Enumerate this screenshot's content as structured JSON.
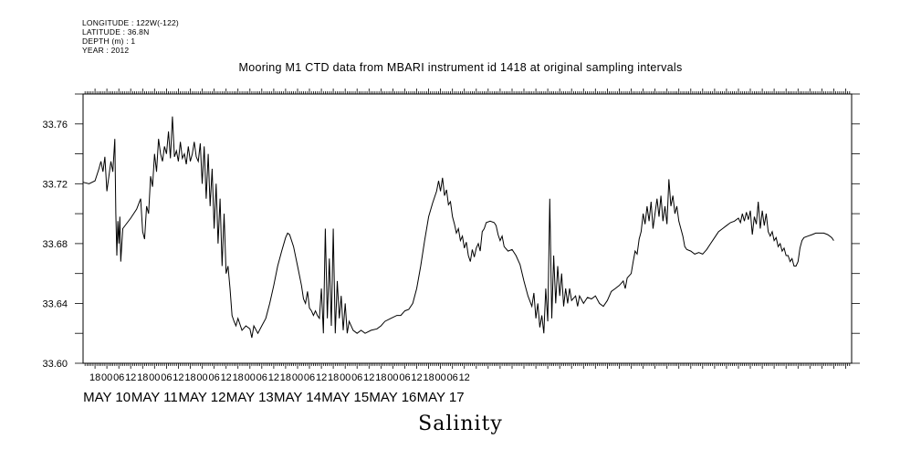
{
  "header": {
    "longitude": "LONGITUDE : 122W(-122)",
    "latitude": "LATITUDE : 36.8N",
    "depth": "DEPTH (m) : 1",
    "year": "YEAR : 2012"
  },
  "chart_data": {
    "type": "line",
    "title": "Mooring M1 CTD data from MBARI instrument id 1418 at original sampling intervals",
    "xlabel": "Salinity",
    "ylabel": "",
    "ylim": [
      33.6,
      33.78
    ],
    "yticks": [
      "33.60",
      "33.64",
      "33.68",
      "33.72",
      "33.76"
    ],
    "xlim_hours_label": "May 9 12:00 to May 17 15:00",
    "hour_ticks": [
      "18",
      "00",
      "06",
      "12",
      "18",
      "00",
      "06",
      "12",
      "18",
      "00",
      "06",
      "12",
      "18",
      "00",
      "06",
      "12",
      "18",
      "00",
      "06",
      "12",
      "18",
      "00",
      "06",
      "12",
      "18",
      "00",
      "06",
      "12",
      "18",
      "00",
      "06",
      "12"
    ],
    "day_labels": [
      "MAY 10",
      "MAY 11",
      "MAY 12",
      "MAY 13",
      "MAY 14",
      "MAY 15",
      "MAY 16",
      "MAY 17"
    ],
    "color": "#000000",
    "series": [
      {
        "points": [
          [
            0,
            33.721
          ],
          [
            3,
            33.72
          ],
          [
            6,
            33.722
          ],
          [
            8,
            33.73
          ],
          [
            9,
            33.735
          ],
          [
            10,
            33.728
          ],
          [
            11,
            33.738
          ],
          [
            12,
            33.715
          ],
          [
            13,
            33.725
          ],
          [
            14,
            33.735
          ],
          [
            15,
            33.728
          ],
          [
            16,
            33.75
          ],
          [
            16.5,
            33.7
          ],
          [
            17,
            33.672
          ],
          [
            17.5,
            33.695
          ],
          [
            18,
            33.68
          ],
          [
            18.5,
            33.698
          ],
          [
            19,
            33.668
          ],
          [
            20,
            33.69
          ],
          [
            24,
            33.697
          ],
          [
            27,
            33.703
          ],
          [
            29,
            33.71
          ],
          [
            30,
            33.688
          ],
          [
            31,
            33.683
          ],
          [
            32,
            33.705
          ],
          [
            33,
            33.7
          ],
          [
            34,
            33.725
          ],
          [
            35,
            33.718
          ],
          [
            36,
            33.74
          ],
          [
            37,
            33.728
          ],
          [
            38,
            33.75
          ],
          [
            39,
            33.74
          ],
          [
            40,
            33.735
          ],
          [
            41,
            33.745
          ],
          [
            42,
            33.74
          ],
          [
            43,
            33.755
          ],
          [
            44,
            33.737
          ],
          [
            45,
            33.765
          ],
          [
            46,
            33.738
          ],
          [
            47,
            33.742
          ],
          [
            48,
            33.735
          ],
          [
            49,
            33.748
          ],
          [
            50,
            33.737
          ],
          [
            51,
            33.74
          ],
          [
            52,
            33.733
          ],
          [
            53,
            33.745
          ],
          [
            54,
            33.735
          ],
          [
            55,
            33.74
          ],
          [
            56,
            33.748
          ],
          [
            57,
            33.738
          ],
          [
            58,
            33.735
          ],
          [
            59,
            33.747
          ],
          [
            60,
            33.72
          ],
          [
            61,
            33.745
          ],
          [
            62,
            33.71
          ],
          [
            63,
            33.74
          ],
          [
            64,
            33.705
          ],
          [
            65,
            33.73
          ],
          [
            66,
            33.69
          ],
          [
            67,
            33.72
          ],
          [
            68,
            33.68
          ],
          [
            69,
            33.71
          ],
          [
            70,
            33.665
          ],
          [
            71,
            33.7
          ],
          [
            72,
            33.66
          ],
          [
            73,
            33.665
          ],
          [
            74,
            33.65
          ],
          [
            75,
            33.632
          ],
          [
            76,
            33.628
          ],
          [
            77,
            33.625
          ],
          [
            78,
            33.63
          ],
          [
            80,
            33.622
          ],
          [
            82,
            33.625
          ],
          [
            84,
            33.623
          ],
          [
            85,
            33.617
          ],
          [
            86,
            33.625
          ],
          [
            88,
            33.62
          ],
          [
            90,
            33.625
          ],
          [
            92,
            33.63
          ],
          [
            94,
            33.64
          ],
          [
            96,
            33.652
          ],
          [
            98,
            33.665
          ],
          [
            100,
            33.675
          ],
          [
            102,
            33.684
          ],
          [
            103,
            33.687
          ],
          [
            104,
            33.686
          ],
          [
            106,
            33.678
          ],
          [
            108,
            33.665
          ],
          [
            110,
            33.652
          ],
          [
            111,
            33.643
          ],
          [
            112,
            33.64
          ],
          [
            113,
            33.648
          ],
          [
            114,
            33.637
          ],
          [
            115,
            33.635
          ],
          [
            116,
            33.632
          ],
          [
            117,
            33.635
          ],
          [
            118,
            33.632
          ],
          [
            119,
            33.63
          ],
          [
            120,
            33.65
          ],
          [
            121,
            33.62
          ],
          [
            122,
            33.69
          ],
          [
            123,
            33.63
          ],
          [
            124,
            33.67
          ],
          [
            125,
            33.625
          ],
          [
            126,
            33.69
          ],
          [
            127,
            33.62
          ],
          [
            128,
            33.655
          ],
          [
            129,
            33.63
          ],
          [
            130,
            33.645
          ],
          [
            131,
            33.622
          ],
          [
            132,
            33.64
          ],
          [
            133,
            33.62
          ],
          [
            134,
            33.628
          ],
          [
            136,
            33.622
          ],
          [
            138,
            33.62
          ],
          [
            140,
            33.622
          ],
          [
            142,
            33.62
          ],
          [
            145,
            33.622
          ],
          [
            148,
            33.623
          ],
          [
            150,
            33.625
          ],
          [
            152,
            33.628
          ],
          [
            155,
            33.63
          ],
          [
            158,
            33.632
          ],
          [
            160,
            33.632
          ],
          [
            162,
            33.635
          ],
          [
            164,
            33.636
          ],
          [
            166,
            33.64
          ],
          [
            168,
            33.65
          ],
          [
            170,
            33.665
          ],
          [
            172,
            33.682
          ],
          [
            174,
            33.698
          ],
          [
            176,
            33.707
          ],
          [
            178,
            33.715
          ],
          [
            179,
            33.722
          ],
          [
            180,
            33.715
          ],
          [
            181,
            33.724
          ],
          [
            182,
            33.712
          ],
          [
            183,
            33.716
          ],
          [
            184,
            33.706
          ],
          [
            185,
            33.708
          ],
          [
            186,
            33.698
          ],
          [
            187,
            33.693
          ],
          [
            188,
            33.687
          ],
          [
            189,
            33.69
          ],
          [
            190,
            33.682
          ],
          [
            191,
            33.685
          ],
          [
            192,
            33.677
          ],
          [
            193,
            33.681
          ],
          [
            194,
            33.672
          ],
          [
            195,
            33.668
          ],
          [
            196,
            33.676
          ],
          [
            197,
            33.671
          ],
          [
            198,
            33.677
          ],
          [
            199,
            33.68
          ],
          [
            200,
            33.675
          ],
          [
            201,
            33.688
          ],
          [
            202,
            33.69
          ],
          [
            203,
            33.694
          ],
          [
            205,
            33.695
          ],
          [
            207,
            33.694
          ],
          [
            208,
            33.692
          ],
          [
            209,
            33.686
          ],
          [
            210,
            33.682
          ],
          [
            211,
            33.685
          ],
          [
            212,
            33.678
          ],
          [
            214,
            33.675
          ],
          [
            216,
            33.676
          ],
          [
            218,
            33.672
          ],
          [
            220,
            33.666
          ],
          [
            222,
            33.655
          ],
          [
            224,
            33.645
          ],
          [
            226,
            33.638
          ],
          [
            227,
            33.647
          ],
          [
            228,
            33.63
          ],
          [
            229,
            33.64
          ],
          [
            230,
            33.624
          ],
          [
            231,
            33.632
          ],
          [
            232,
            33.62
          ],
          [
            233,
            33.65
          ],
          [
            234,
            33.628
          ],
          [
            235,
            33.71
          ],
          [
            236,
            33.63
          ],
          [
            237,
            33.672
          ],
          [
            238,
            33.64
          ],
          [
            239,
            33.665
          ],
          [
            240,
            33.645
          ],
          [
            241,
            33.66
          ],
          [
            242,
            33.638
          ],
          [
            243,
            33.65
          ],
          [
            244,
            33.64
          ],
          [
            245,
            33.65
          ],
          [
            246,
            33.642
          ],
          [
            248,
            33.645
          ],
          [
            249,
            33.638
          ],
          [
            250,
            33.645
          ],
          [
            252,
            33.64
          ],
          [
            254,
            33.644
          ],
          [
            256,
            33.643
          ],
          [
            258,
            33.645
          ],
          [
            260,
            33.64
          ],
          [
            262,
            33.638
          ],
          [
            264,
            33.642
          ],
          [
            266,
            33.648
          ],
          [
            268,
            33.65
          ],
          [
            270,
            33.652
          ],
          [
            272,
            33.655
          ],
          [
            273,
            33.65
          ],
          [
            274,
            33.657
          ],
          [
            276,
            33.66
          ],
          [
            277,
            33.668
          ],
          [
            278,
            33.675
          ],
          [
            279,
            33.673
          ],
          [
            280,
            33.683
          ],
          [
            281,
            33.688
          ],
          [
            282,
            33.7
          ],
          [
            283,
            33.693
          ],
          [
            284,
            33.705
          ],
          [
            285,
            33.695
          ],
          [
            286,
            33.708
          ],
          [
            287,
            33.69
          ],
          [
            288,
            33.7
          ],
          [
            289,
            33.71
          ],
          [
            290,
            33.698
          ],
          [
            291,
            33.712
          ],
          [
            292,
            33.695
          ],
          [
            293,
            33.705
          ],
          [
            294,
            33.693
          ],
          [
            295,
            33.723
          ],
          [
            296,
            33.705
          ],
          [
            297,
            33.712
          ],
          [
            298,
            33.7
          ],
          [
            299,
            33.705
          ],
          [
            300,
            33.695
          ],
          [
            301,
            33.69
          ],
          [
            302,
            33.685
          ],
          [
            303,
            33.678
          ],
          [
            304,
            33.676
          ],
          [
            306,
            33.675
          ],
          [
            308,
            33.673
          ],
          [
            310,
            33.674
          ],
          [
            312,
            33.673
          ],
          [
            314,
            33.676
          ],
          [
            316,
            33.68
          ],
          [
            318,
            33.684
          ],
          [
            320,
            33.688
          ],
          [
            322,
            33.69
          ],
          [
            324,
            33.692
          ],
          [
            326,
            33.694
          ],
          [
            328,
            33.695
          ],
          [
            330,
            33.697
          ],
          [
            331,
            33.694
          ],
          [
            332,
            33.7
          ],
          [
            333,
            33.695
          ],
          [
            334,
            33.701
          ],
          [
            335,
            33.696
          ],
          [
            336,
            33.702
          ],
          [
            337,
            33.686
          ],
          [
            338,
            33.698
          ],
          [
            339,
            33.693
          ],
          [
            340,
            33.708
          ],
          [
            341,
            33.69
          ],
          [
            342,
            33.702
          ],
          [
            343,
            33.692
          ],
          [
            344,
            33.7
          ],
          [
            345,
            33.688
          ],
          [
            346,
            33.685
          ],
          [
            347,
            33.688
          ],
          [
            348,
            33.682
          ],
          [
            349,
            33.684
          ],
          [
            350,
            33.678
          ],
          [
            351,
            33.68
          ],
          [
            352,
            33.675
          ],
          [
            353,
            33.677
          ],
          [
            354,
            33.672
          ],
          [
            355,
            33.672
          ],
          [
            356,
            33.668
          ],
          [
            357,
            33.67
          ],
          [
            358,
            33.665
          ],
          [
            359,
            33.665
          ],
          [
            360,
            33.668
          ],
          [
            361,
            33.677
          ],
          [
            362,
            33.682
          ],
          [
            363,
            33.684
          ],
          [
            365,
            33.685
          ],
          [
            367,
            33.686
          ],
          [
            369,
            33.687
          ],
          [
            371,
            33.687
          ],
          [
            373,
            33.687
          ],
          [
            375,
            33.686
          ],
          [
            377,
            33.684
          ],
          [
            378,
            33.682
          ]
        ]
      }
    ]
  }
}
